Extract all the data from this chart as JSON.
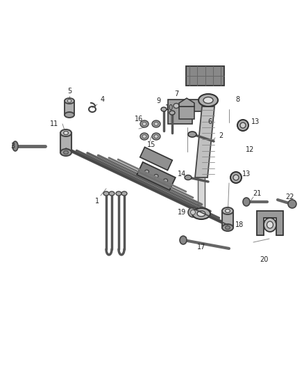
{
  "bg_color": "#ffffff",
  "fig_width": 4.38,
  "fig_height": 5.33,
  "dpi": 100,
  "line_color": "#555555",
  "part_color": "#888888",
  "dark_color": "#333333",
  "label_color": "#222222",
  "label_fs": 7
}
